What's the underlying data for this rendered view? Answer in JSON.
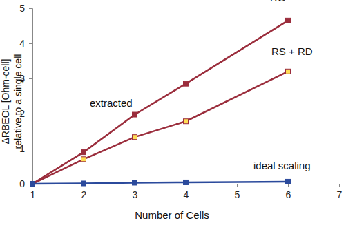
{
  "chart_data": {
    "type": "line",
    "x_label": "Number of Cells",
    "y_label": [
      "ΔRBEOL [Ohm-cell]",
      "relative to a single cell"
    ],
    "annotations": [
      "extracted"
    ],
    "x": [
      1,
      2,
      3,
      4,
      6
    ],
    "series": [
      {
        "name": "RG",
        "color": "#9b2d3c",
        "marker": "square",
        "values": [
          0,
          0.9,
          1.97,
          2.85,
          4.65
        ]
      },
      {
        "name": "RS + RD",
        "color": "#9b2d3c",
        "marker": "square",
        "colors": [
          "#ffdd55",
          "#ffdd55",
          "#ffdd55",
          "#ffdd55",
          "#ffdd55"
        ],
        "values": [
          0,
          0.7,
          1.33,
          1.78,
          3.2
        ]
      },
      {
        "name": "ideal scaling",
        "color": "#2b4a9c",
        "marker": "square",
        "values": [
          0,
          0.01,
          0.03,
          0.04,
          0.06
        ]
      }
    ],
    "xlim": [
      1,
      7
    ],
    "xticks": [
      1,
      2,
      3,
      4,
      5,
      6,
      7
    ],
    "ylim": [
      0,
      5
    ],
    "yticks": [
      0,
      1,
      2,
      3,
      4,
      5
    ],
    "grid": false
  }
}
